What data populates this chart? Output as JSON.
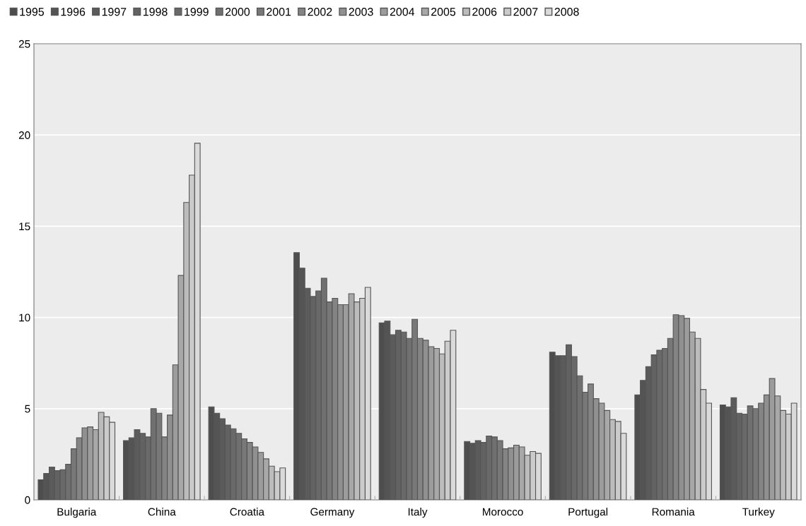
{
  "chart_data": {
    "type": "bar",
    "categories": [
      "Bulgaria",
      "China",
      "Croatia",
      "Germany",
      "Italy",
      "Morocco",
      "Portugal",
      "Romania",
      "Turkey"
    ],
    "series": [
      {
        "name": "1995",
        "color": "#4d4d4d",
        "values": [
          1.1,
          3.25,
          5.1,
          13.55,
          9.7,
          3.2,
          8.1,
          5.75,
          5.2
        ]
      },
      {
        "name": "1996",
        "color": "#545454",
        "values": [
          1.45,
          3.4,
          4.75,
          12.7,
          9.8,
          3.1,
          7.9,
          6.55,
          5.1
        ]
      },
      {
        "name": "1997",
        "color": "#5b5b5b",
        "values": [
          1.8,
          3.85,
          4.45,
          11.6,
          9.05,
          3.25,
          7.9,
          7.3,
          5.6
        ]
      },
      {
        "name": "1998",
        "color": "#626262",
        "values": [
          1.6,
          3.65,
          4.1,
          11.15,
          9.3,
          3.15,
          8.5,
          7.95,
          4.75
        ]
      },
      {
        "name": "1999",
        "color": "#696969",
        "values": [
          1.65,
          3.45,
          3.9,
          11.45,
          9.2,
          3.5,
          7.85,
          8.2,
          4.7
        ]
      },
      {
        "name": "2000",
        "color": "#707070",
        "values": [
          1.95,
          5.0,
          3.65,
          12.15,
          8.85,
          3.45,
          6.8,
          8.3,
          5.15
        ]
      },
      {
        "name": "2001",
        "color": "#787878",
        "values": [
          2.8,
          4.75,
          3.35,
          10.85,
          9.9,
          3.25,
          5.9,
          8.85,
          5.0
        ]
      },
      {
        "name": "2002",
        "color": "#848484",
        "values": [
          3.4,
          3.45,
          3.15,
          11.05,
          8.85,
          2.8,
          6.35,
          10.15,
          5.3
        ]
      },
      {
        "name": "2003",
        "color": "#909090",
        "values": [
          3.95,
          4.65,
          2.9,
          10.7,
          8.75,
          2.85,
          5.55,
          10.1,
          5.75
        ]
      },
      {
        "name": "2004",
        "color": "#9c9c9c",
        "values": [
          4.0,
          7.4,
          2.6,
          10.7,
          8.4,
          3.0,
          5.3,
          9.95,
          6.65
        ]
      },
      {
        "name": "2005",
        "color": "#a8a8a8",
        "values": [
          3.85,
          12.3,
          2.25,
          11.3,
          8.3,
          2.9,
          4.9,
          9.2,
          5.7
        ]
      },
      {
        "name": "2006",
        "color": "#bcbcbc",
        "values": [
          4.8,
          16.3,
          1.85,
          10.85,
          8.0,
          2.45,
          4.4,
          8.85,
          4.9
        ]
      },
      {
        "name": "2007",
        "color": "#cbcbcb",
        "values": [
          4.55,
          17.8,
          1.55,
          11.05,
          8.7,
          2.65,
          4.3,
          6.05,
          4.7
        ]
      },
      {
        "name": "2008",
        "color": "#dadada",
        "values": [
          4.25,
          19.55,
          1.75,
          11.65,
          9.3,
          2.55,
          3.65,
          5.3,
          5.3
        ]
      }
    ],
    "ylim": [
      0,
      25
    ],
    "yticks": [
      0,
      5,
      10,
      15,
      20,
      25
    ],
    "grid": "y",
    "legend": "top left"
  }
}
